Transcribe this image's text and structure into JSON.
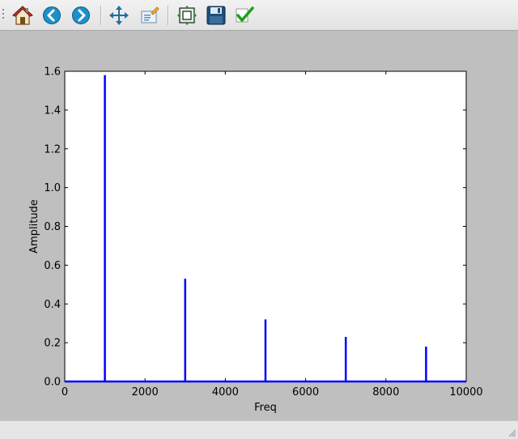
{
  "toolbar": {
    "tools": [
      {
        "name": "home",
        "icon": "home-icon"
      },
      {
        "name": "back",
        "icon": "back-arrow-icon"
      },
      {
        "name": "forward",
        "icon": "forward-arrow-icon"
      },
      {
        "name": "pan",
        "icon": "pan-move-icon"
      },
      {
        "name": "zoom",
        "icon": "zoom-rect-icon"
      },
      {
        "name": "subplots",
        "icon": "configure-subplots-icon"
      },
      {
        "name": "save",
        "icon": "save-floppy-icon"
      },
      {
        "name": "edit",
        "icon": "edit-check-icon"
      }
    ]
  },
  "chart_data": {
    "type": "line",
    "title": "",
    "xlabel": "Freq",
    "ylabel": "Amplitude",
    "xlim": [
      0,
      10000
    ],
    "ylim": [
      0,
      1.6
    ],
    "xticks": [
      0,
      2000,
      4000,
      6000,
      8000,
      10000
    ],
    "xtick_labels": [
      "0",
      "2000",
      "4000",
      "6000",
      "8000",
      "10000"
    ],
    "yticks": [
      0.0,
      0.2,
      0.4,
      0.6,
      0.8,
      1.0,
      1.2,
      1.4,
      1.6
    ],
    "ytick_labels": [
      "0.0",
      "0.2",
      "0.4",
      "0.6",
      "0.8",
      "1.0",
      "1.2",
      "1.4",
      "1.6"
    ],
    "grid": false,
    "series": [
      {
        "color": "#0000ff",
        "baseline": 0,
        "peaks": [
          {
            "x": 1000,
            "y": 1.58
          },
          {
            "x": 3000,
            "y": 0.53
          },
          {
            "x": 5000,
            "y": 0.32
          },
          {
            "x": 7000,
            "y": 0.23
          },
          {
            "x": 9000,
            "y": 0.18
          }
        ]
      }
    ]
  }
}
